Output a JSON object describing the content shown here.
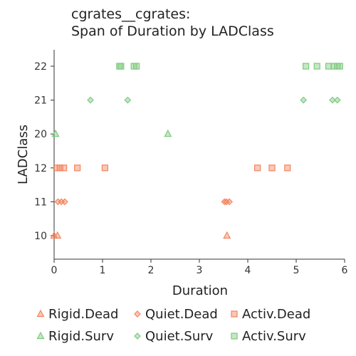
{
  "chart_data": {
    "type": "scatter",
    "title": [
      "cgrates__cgrates:",
      "Span of Duration by LADClass"
    ],
    "xlabel": "Duration",
    "ylabel": "LADClass",
    "xlim": [
      0,
      6
    ],
    "xticks": [
      0,
      1,
      2,
      3,
      4,
      5,
      6
    ],
    "categories": [
      "10",
      "11",
      "12",
      "20",
      "21",
      "22"
    ],
    "grid": false,
    "legend_position": "bottom",
    "series": [
      {
        "name": "Rigid.Dead",
        "marker": "triangle",
        "color": "#f4845f",
        "points": [
          [
            "10",
            0.0
          ],
          [
            "10",
            0.07
          ],
          [
            "10",
            3.57
          ]
        ]
      },
      {
        "name": "Quiet.Dead",
        "marker": "diamond",
        "color": "#f4845f",
        "points": [
          [
            "11",
            0.08
          ],
          [
            "11",
            0.15
          ],
          [
            "11",
            0.22
          ],
          [
            "11",
            3.52
          ],
          [
            "11",
            3.56
          ],
          [
            "11",
            3.62
          ]
        ]
      },
      {
        "name": "Activ.Dead",
        "marker": "square",
        "color": "#f4845f",
        "points": [
          [
            "12",
            0.05
          ],
          [
            "12",
            0.12
          ],
          [
            "12",
            0.2
          ],
          [
            "12",
            0.48
          ],
          [
            "12",
            1.05
          ],
          [
            "12",
            4.2
          ],
          [
            "12",
            4.5
          ],
          [
            "12",
            4.82
          ]
        ]
      },
      {
        "name": "Rigid.Surv",
        "marker": "triangle",
        "color": "#7fc97f",
        "points": [
          [
            "20",
            0.03
          ],
          [
            "20",
            2.35
          ]
        ]
      },
      {
        "name": "Quiet.Surv",
        "marker": "diamond",
        "color": "#7fc97f",
        "points": [
          [
            "21",
            0.75
          ],
          [
            "21",
            1.52
          ],
          [
            "21",
            5.15
          ],
          [
            "21",
            5.75
          ],
          [
            "21",
            5.85
          ]
        ]
      },
      {
        "name": "Activ.Surv",
        "marker": "square",
        "color": "#7fc97f",
        "points": [
          [
            "22",
            1.35
          ],
          [
            "22",
            1.38
          ],
          [
            "22",
            1.65
          ],
          [
            "22",
            1.7
          ],
          [
            "22",
            5.2
          ],
          [
            "22",
            5.43
          ],
          [
            "22",
            5.67
          ],
          [
            "22",
            5.78
          ],
          [
            "22",
            5.85
          ],
          [
            "22",
            5.9
          ]
        ]
      }
    ]
  }
}
